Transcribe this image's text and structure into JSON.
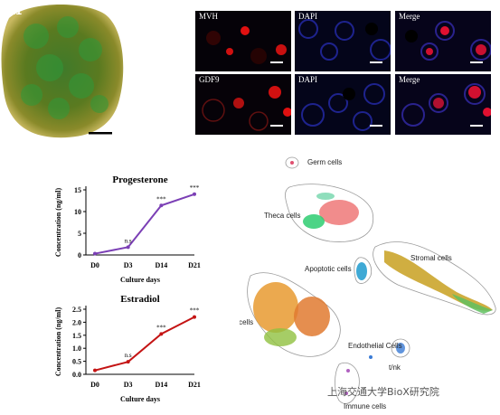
{
  "panel_a": {
    "label": "D21"
  },
  "if_panels": {
    "row1": [
      {
        "label": "MVH",
        "color": "#d01818"
      },
      {
        "label": "DAPI",
        "color": "#1a22c8"
      },
      {
        "label": "Merge",
        "color": "#5a2a9a"
      }
    ],
    "row2": [
      {
        "label": "GDF9",
        "color": "#d01818"
      },
      {
        "label": "DAPI",
        "color": "#1a22c8"
      },
      {
        "label": "Merge",
        "color": "#5a2a9a"
      }
    ]
  },
  "chart_data": [
    {
      "type": "line",
      "title": "Progesterone",
      "categories": [
        "D0",
        "D3",
        "D14",
        "D21"
      ],
      "values": [
        0.3,
        1.8,
        11.4,
        14.0
      ],
      "significance": [
        "",
        "n.s",
        "***",
        "***"
      ],
      "xlabel": "Culture days",
      "ylabel": "Concentration (ng/ml)",
      "ylim": [
        0,
        15
      ],
      "yticks": [
        "0",
        "5",
        "10",
        "15"
      ],
      "color": "#7b3fb5"
    },
    {
      "type": "line",
      "title": "Estradiol",
      "categories": [
        "D0",
        "D3",
        "D14",
        "D21"
      ],
      "values": [
        0.15,
        0.48,
        1.55,
        2.2
      ],
      "significance": [
        "",
        "n.s",
        "***",
        "***"
      ],
      "xlabel": "Culture days",
      "ylabel": "Concentration (ng/ml)",
      "ylim": [
        0,
        2.5
      ],
      "yticks": [
        "0.0",
        "0.5",
        "1.0",
        "1.5",
        "2.0",
        "2.5"
      ],
      "color": "#c41414"
    }
  ],
  "umap": {
    "clusters": [
      {
        "label": "Germ cells"
      },
      {
        "label": "Theca cells"
      },
      {
        "label": "Stromal cells"
      },
      {
        "label": "Apoptotic cells"
      },
      {
        "label": "Granulosa cells"
      },
      {
        "label": "Endothelial Cells"
      },
      {
        "label": "t/nk"
      },
      {
        "label": "Immune cells"
      }
    ],
    "colors": {
      "theca": "#f08080",
      "theca_green": "#2ecc71",
      "stromal": "#c8a020",
      "stromal_green": "#60c060",
      "granulosa": "#e89a30",
      "granulosa_green": "#90c040",
      "apoptotic": "#2aa0d0",
      "endothelial": "#3a7bd5",
      "immune": "#b060c0",
      "germ": "#e05070",
      "outline": "#888888"
    }
  },
  "watermark": "上海交通大学BioX研究院"
}
